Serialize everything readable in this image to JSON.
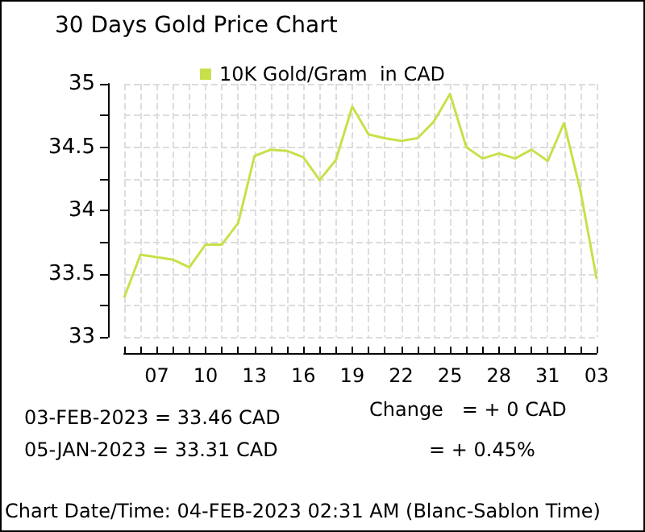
{
  "chart_data": {
    "type": "line",
    "title": "30 Days Gold Price Chart",
    "categories": [
      null,
      null,
      "07",
      null,
      null,
      "10",
      null,
      null,
      "13",
      null,
      null,
      "16",
      null,
      null,
      "19",
      null,
      null,
      "22",
      null,
      null,
      "25",
      null,
      null,
      "28",
      null,
      null,
      "31",
      null,
      null,
      "03"
    ],
    "series": [
      {
        "name": "10K Gold/Gram  in CAD",
        "color": "#c8e04a",
        "values": [
          33.31,
          33.65,
          33.63,
          33.61,
          33.55,
          33.73,
          33.73,
          33.9,
          34.43,
          34.48,
          34.47,
          34.42,
          34.24,
          34.4,
          34.82,
          34.6,
          34.57,
          34.55,
          34.57,
          34.7,
          34.92,
          34.5,
          34.41,
          34.45,
          34.41,
          34.48,
          34.39,
          34.69,
          34.16,
          33.46
        ]
      }
    ],
    "ylim": [
      33,
      35
    ],
    "yticks": [
      33,
      {
        "value": 33.25,
        "label": null
      },
      33.5,
      {
        "value": 33.75,
        "label": null
      },
      34,
      {
        "value": 34.25,
        "label": null
      },
      34.5,
      {
        "value": 34.75,
        "label": null
      },
      35
    ],
    "grid": true,
    "legend": "top",
    "marker": "none",
    "line_style": "solid",
    "annotations": [
      "03-FEB-2023 = 33.46 CAD",
      "05-JAN-2023 = 33.31 CAD",
      "Change   = + 0 CAD",
      "= + 0.45%",
      "Chart Date/Time: 04-FEB-2023 02:31 AM (Blanc-Sablon Time)"
    ]
  }
}
